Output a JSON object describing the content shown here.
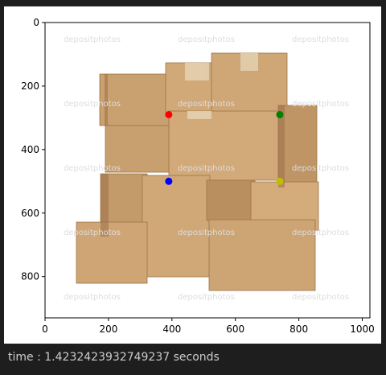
{
  "output": {
    "time_label": "time",
    "time_sep": " : ",
    "time_value": "1.4232423932749237",
    "time_unit": " seconds"
  },
  "plot": {
    "image_subject": "stack of cardboard boxes",
    "watermark_text": "depositphotos",
    "colors": {
      "cell_bg": "#1e1e1e",
      "output_text": "#cccccc",
      "point_red": "#ff0000",
      "point_green": "#008000",
      "point_blue": "#0000ff",
      "point_yellow": "#bfbf00"
    }
  },
  "chart_data": {
    "type": "scatter",
    "title": "",
    "xlabel": "",
    "ylabel": "",
    "xlim": [
      0,
      1024
    ],
    "ylim": [
      930,
      0
    ],
    "x_ticks": [
      0,
      200,
      400,
      600,
      800,
      1000
    ],
    "y_ticks": [
      0,
      200,
      400,
      600,
      800
    ],
    "grid": false,
    "series": [
      {
        "color": "red",
        "points": [
          [
            390,
            290
          ]
        ]
      },
      {
        "color": "green",
        "points": [
          [
            740,
            290
          ]
        ]
      },
      {
        "color": "blue",
        "points": [
          [
            390,
            500
          ]
        ]
      },
      {
        "color": "yellow",
        "points": [
          [
            740,
            500
          ]
        ]
      }
    ]
  }
}
